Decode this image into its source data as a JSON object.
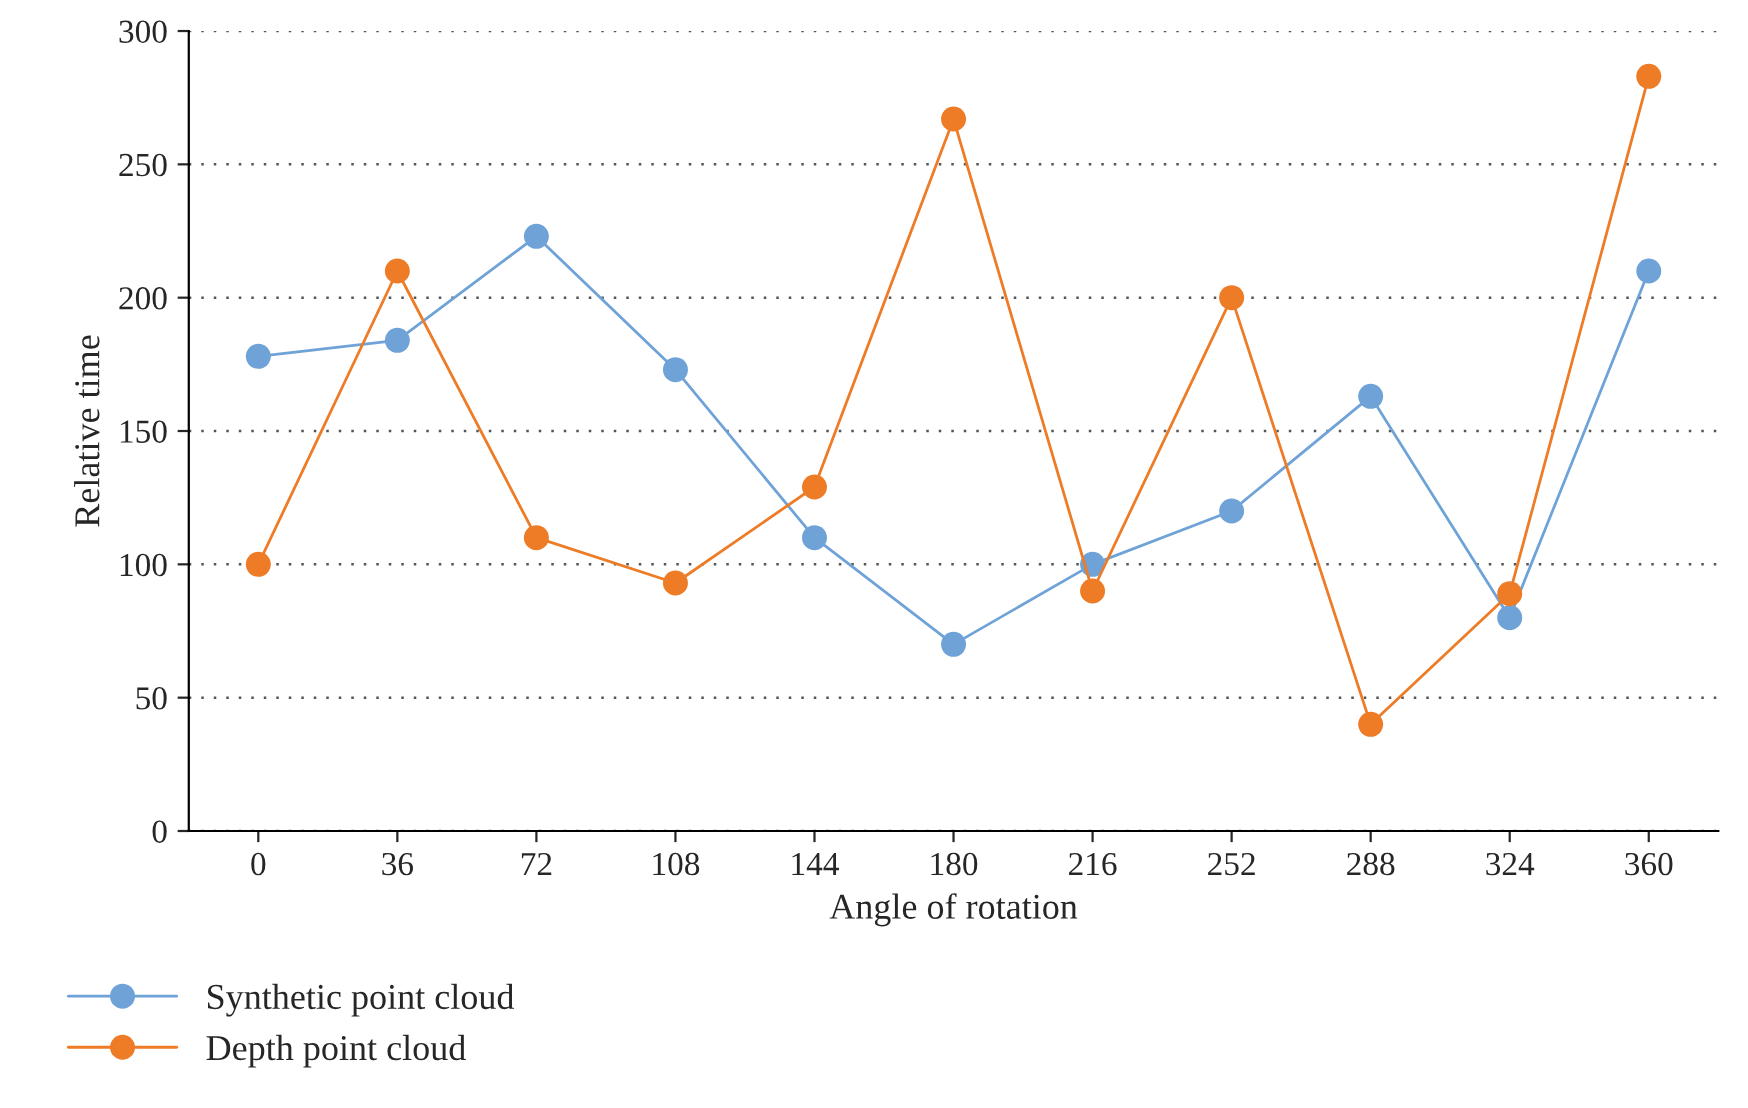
{
  "chart_data": {
    "type": "line",
    "xlabel": "Angle of rotation",
    "ylabel": "Relative time",
    "categories": [
      "0",
      "36",
      "72",
      "108",
      "144",
      "180",
      "216",
      "252",
      "288",
      "324",
      "360"
    ],
    "series": [
      {
        "name": "Synthetic point cloud",
        "color": "#6fa3d8",
        "values": [
          178,
          184,
          223,
          173,
          110,
          70,
          100,
          120,
          163,
          80,
          210
        ]
      },
      {
        "name": "Depth point cloud",
        "color": "#ee7b26",
        "values": [
          100,
          210,
          110,
          93,
          129,
          267,
          90,
          200,
          40,
          89,
          283
        ]
      }
    ],
    "ylim": [
      0,
      300
    ],
    "yticks": [
      0,
      50,
      100,
      150,
      200,
      250,
      300
    ],
    "grid": "y",
    "legend": "bottom left",
    "marker": "circle",
    "line_style": "solid"
  }
}
